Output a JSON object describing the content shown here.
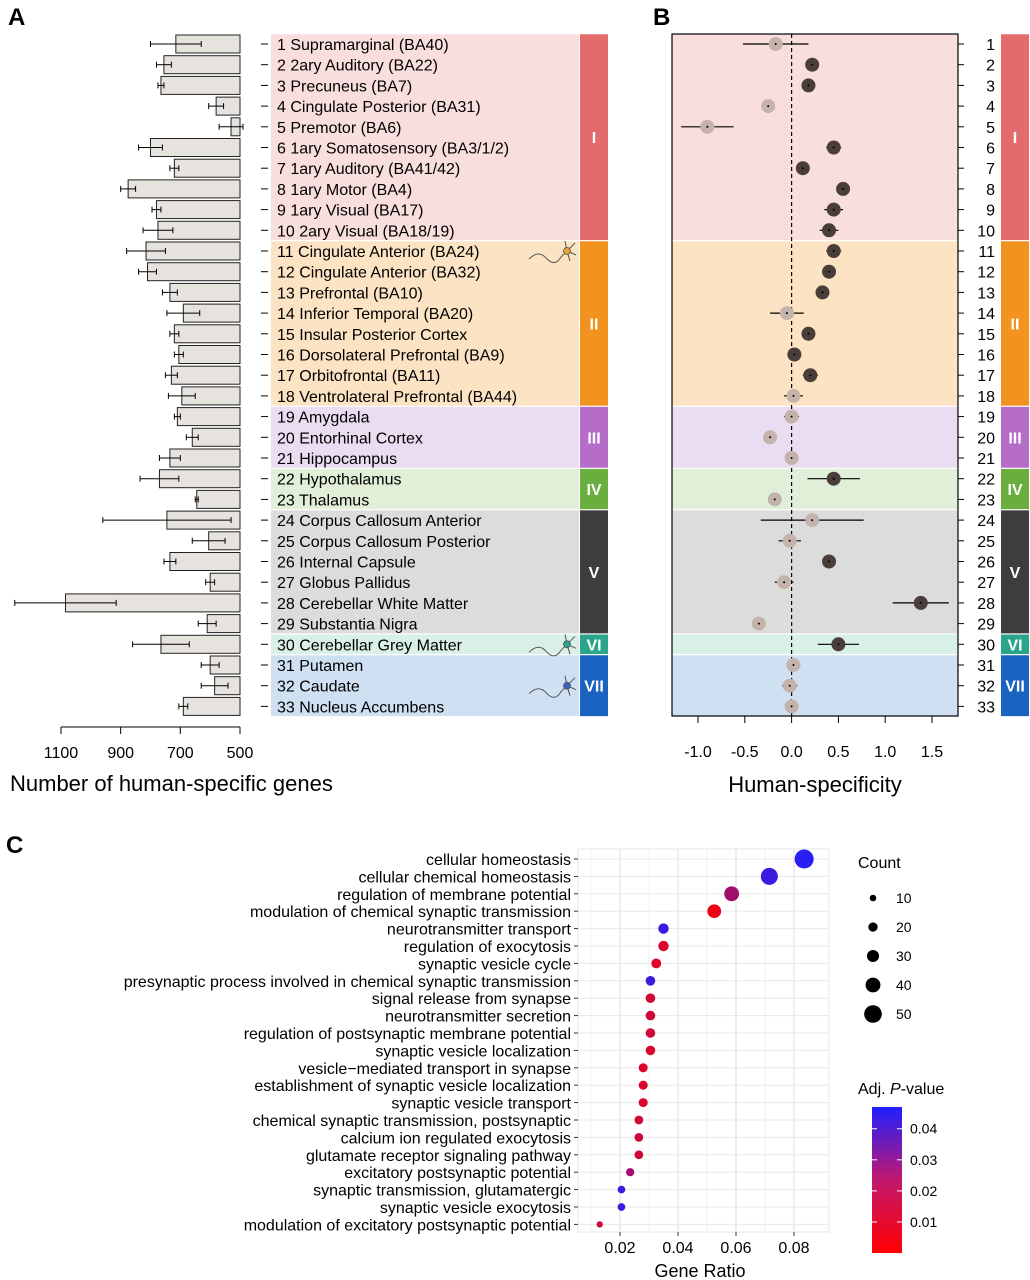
{
  "panel_letters": {
    "a": "A",
    "b": "B",
    "c": "C"
  },
  "groups": [
    {
      "label": "I",
      "from": 1,
      "to": 10,
      "bg": "#f8dedd",
      "bar": "#e46b6b"
    },
    {
      "label": "II",
      "from": 11,
      "to": 18,
      "bg": "#fbe3c3",
      "bar": "#f3931f"
    },
    {
      "label": "III",
      "from": 19,
      "to": 21,
      "bg": "#eadcf1",
      "bar": "#b56dc8"
    },
    {
      "label": "IV",
      "from": 22,
      "to": 23,
      "bg": "#e2efd8",
      "bar": "#6aae3f"
    },
    {
      "label": "V",
      "from": 24,
      "to": 29,
      "bg": "#dcdcdc",
      "bar": "#3d3d3d"
    },
    {
      "label": "VI",
      "from": 30,
      "to": 30,
      "bg": "#d8f0e8",
      "bar": "#2aa48a"
    },
    {
      "label": "VII",
      "from": 31,
      "to": 33,
      "bg": "#cfe0f2",
      "bar": "#1a63c0"
    }
  ],
  "colors": {
    "bar_fill": "#e6e2de",
    "pt_light": "#c4b3ab",
    "pt_dark": "#4a3e3a"
  },
  "chart_data": [
    {
      "type": "bar",
      "orientation": "horizontal",
      "xlabel": "Number of human-specific genes",
      "xlim": [
        1150,
        500
      ],
      "xticks": [
        1100,
        900,
        700,
        500
      ],
      "categories": [
        "Supramarginal (BA40)",
        "2ary Auditory (BA22)",
        "Precuneus (BA7)",
        "Cingulate Posterior (BA31)",
        "Premotor (BA6)",
        "1ary Somatosensory (BA3/1/2)",
        "1ary Auditory (BA41/42)",
        "1ary Motor (BA4)",
        "1ary Visual (BA17)",
        "2ary Visual (BA18/19)",
        "Cingulate Anterior (BA24)",
        "Cingulate Anterior (BA32)",
        "Prefrontal (BA10)",
        "Inferior Temporal (BA20)",
        "Insular Posterior Cortex",
        "Dorsolateral Prefrontal (BA9)",
        "Orbitofrontal (BA11)",
        "Ventrolateral Prefrontal (BA44)",
        "Amygdala",
        "Entorhinal Cortex",
        "Hippocampus",
        "Hypothalamus",
        "Thalamus",
        "Corpus Callosum Anterior",
        "Corpus Callosum Posterior",
        "Internal Capsule",
        "Globus Pallidus",
        "Cerebellar White Matter",
        "Substantia Nigra",
        "Cerebellar Grey Matter",
        "Putamen",
        "Caudate",
        "Nucleus Accumbens"
      ],
      "values": [
        715,
        755,
        765,
        580,
        530,
        800,
        720,
        875,
        780,
        775,
        815,
        810,
        735,
        690,
        720,
        705,
        730,
        695,
        710,
        660,
        735,
        770,
        645,
        745,
        605,
        735,
        600,
        1085,
        610,
        765,
        600,
        585,
        690
      ],
      "errors": [
        85,
        25,
        10,
        25,
        40,
        40,
        15,
        25,
        15,
        50,
        65,
        30,
        25,
        55,
        15,
        15,
        20,
        45,
        10,
        20,
        35,
        65,
        5,
        215,
        55,
        20,
        15,
        170,
        30,
        95,
        30,
        45,
        15
      ]
    },
    {
      "type": "scatter",
      "xlabel": "Human-specificity",
      "xlim": [
        -1.25,
        1.8
      ],
      "xticks": [
        "-1.0",
        "-0.5",
        "0.0",
        "0.5",
        "1.0",
        "1.5"
      ],
      "y": [
        1,
        2,
        3,
        4,
        5,
        6,
        7,
        8,
        9,
        10,
        11,
        12,
        13,
        14,
        15,
        16,
        17,
        18,
        19,
        20,
        21,
        22,
        23,
        24,
        25,
        26,
        27,
        28,
        29,
        30,
        31,
        32,
        33
      ],
      "x": [
        -0.17,
        0.22,
        0.18,
        -0.25,
        -0.9,
        0.45,
        0.12,
        0.55,
        0.45,
        0.4,
        0.45,
        0.4,
        0.33,
        -0.05,
        0.18,
        0.03,
        0.2,
        0.02,
        0.0,
        -0.23,
        0.0,
        0.45,
        -0.18,
        0.22,
        -0.02,
        0.4,
        -0.08,
        1.38,
        -0.35,
        0.5,
        0.02,
        -0.02,
        0.0
      ],
      "err": [
        0.35,
        0.05,
        0.03,
        0.06,
        0.28,
        0.08,
        0.05,
        0.05,
        0.1,
        0.1,
        0.08,
        0.05,
        0.05,
        0.18,
        0.05,
        0.05,
        0.08,
        0.1,
        0.08,
        0.05,
        0.05,
        0.28,
        0.03,
        0.55,
        0.12,
        0.05,
        0.1,
        0.3,
        0.03,
        0.22,
        0.06,
        0.08,
        0.05
      ],
      "shade": [
        "light",
        "dark",
        "dark",
        "light",
        "light",
        "dark",
        "dark",
        "dark",
        "dark",
        "dark",
        "dark",
        "dark",
        "dark",
        "light",
        "dark",
        "dark",
        "dark",
        "light",
        "light",
        "light",
        "light",
        "dark",
        "light",
        "light",
        "light",
        "dark",
        "light",
        "dark",
        "light",
        "dark",
        "light",
        "light",
        "light"
      ],
      "vline": 0
    },
    {
      "type": "scatter",
      "xlabel": "Gene Ratio",
      "xlim": [
        0.0085,
        0.0865
      ],
      "xticks": [
        "0.02",
        "0.04",
        "0.06",
        "0.08"
      ],
      "categories": [
        "cellular homeostasis",
        "cellular chemical homeostasis",
        "regulation of membrane potential",
        "modulation of chemical synaptic transmission",
        "neurotransmitter transport",
        "regulation of exocytosis",
        "synaptic vesicle cycle",
        "presynaptic process involved in chemical synaptic transmission",
        "signal release from synapse",
        "neurotransmitter secretion",
        "regulation of postsynaptic membrane potential",
        "synaptic vesicle localization",
        "vesicle−mediated transport in synapse",
        "establishment of synaptic vesicle localization",
        "synaptic vesicle transport",
        "chemical synaptic transmission, postsynaptic",
        "calcium ion regulated exocytosis",
        "glutamate receptor signaling pathway",
        "excitatory postsynaptic potential",
        "synaptic transmission, glutamatergic",
        "synaptic vesicle exocytosis",
        "modulation of excitatory postsynaptic potential"
      ],
      "gene_ratio": [
        0.0835,
        0.0715,
        0.0585,
        0.0525,
        0.035,
        0.035,
        0.0325,
        0.0305,
        0.0305,
        0.0305,
        0.0305,
        0.0305,
        0.028,
        0.028,
        0.028,
        0.0265,
        0.0265,
        0.0265,
        0.0235,
        0.0205,
        0.0205,
        0.013
      ],
      "count": [
        55,
        48,
        40,
        36,
        24,
        24,
        22,
        21,
        21,
        21,
        21,
        21,
        19,
        19,
        19,
        18,
        18,
        18,
        16,
        14,
        14,
        9
      ],
      "p_adj": [
        0.045,
        0.041,
        0.02,
        0.004,
        0.042,
        0.008,
        0.007,
        0.041,
        0.01,
        0.01,
        0.01,
        0.008,
        0.008,
        0.008,
        0.008,
        0.01,
        0.01,
        0.01,
        0.02,
        0.042,
        0.042,
        0.01
      ],
      "size_legend": {
        "title": "Count",
        "values": [
          10,
          20,
          30,
          40,
          50
        ]
      },
      "color_legend": {
        "title_prefix": "Adj. ",
        "title_italic": "P",
        "title_suffix": "-value",
        "min": 0.0,
        "max": 0.047,
        "ticks": [
          "0.04",
          "0.03",
          "0.02",
          "0.01"
        ],
        "low_color": "#ff0000",
        "high_color": "#1f1fff"
      }
    }
  ]
}
